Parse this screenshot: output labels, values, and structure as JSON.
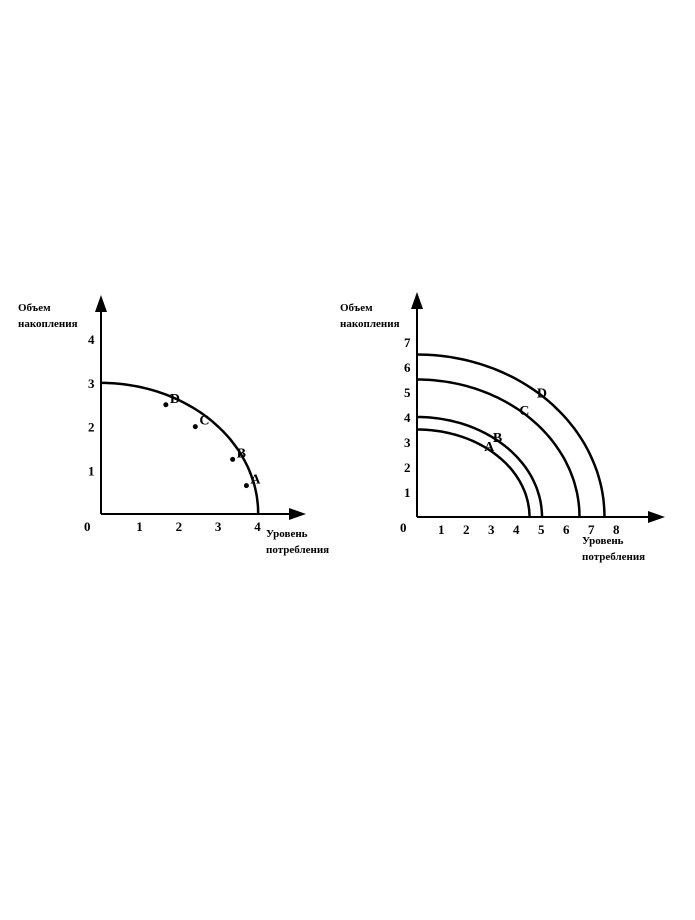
{
  "diagrams": [
    {
      "y_label_line1": "Объем",
      "y_label_line2": "накопления",
      "x_label_line1": "Уровень",
      "x_label_line2": "потребления",
      "origin_label": "0",
      "x_ticks": [
        "1",
        "2",
        "3",
        "4"
      ],
      "y_ticks": [
        "1",
        "2",
        "3",
        "4"
      ],
      "curves": [
        {
          "x_intercept": 4,
          "y_intercept": 3
        }
      ],
      "points": [
        {
          "label": "D",
          "x": 1.65,
          "y": 2.5
        },
        {
          "label": "C",
          "x": 2.4,
          "y": 2.0
        },
        {
          "label": "B",
          "x": 3.35,
          "y": 1.25
        },
        {
          "label": "A",
          "x": 3.7,
          "y": 0.65
        }
      ]
    },
    {
      "y_label_line1": "Объем",
      "y_label_line2": "накопления",
      "x_label_line1": "Уровень",
      "x_label_line2": "потребления",
      "origin_label": "0",
      "x_ticks": [
        "1",
        "2",
        "3",
        "4",
        "5",
        "6",
        "7",
        "8"
      ],
      "y_ticks": [
        "1",
        "2",
        "3",
        "4",
        "5",
        "6",
        "7"
      ],
      "curves": [
        {
          "label": "A",
          "x_intercept": 4.5,
          "y_intercept": 3.5
        },
        {
          "label": "B",
          "x_intercept": 5,
          "y_intercept": 4
        },
        {
          "label": "C",
          "x_intercept": 6.5,
          "y_intercept": 5.5
        },
        {
          "label": "D",
          "x_intercept": 7.5,
          "y_intercept": 6.5
        }
      ]
    }
  ]
}
